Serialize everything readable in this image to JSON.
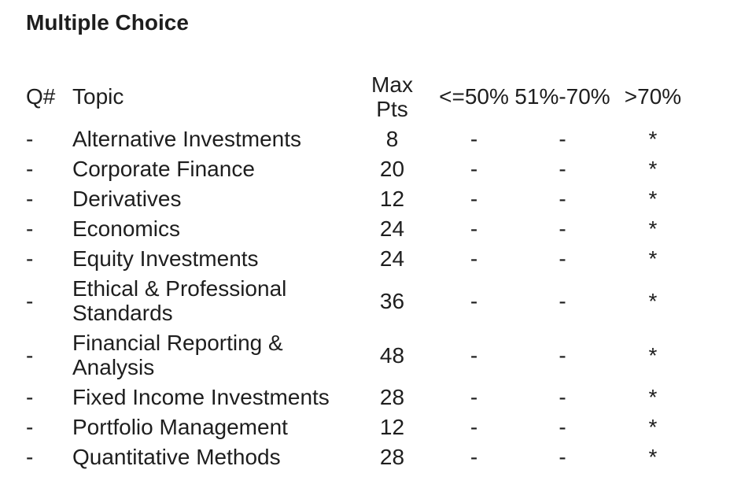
{
  "title": "Multiple Choice",
  "table": {
    "headers": {
      "q": "Q#",
      "topic": "Topic",
      "max_line1": "Max",
      "max_line2": "Pts",
      "le50": "<=50%",
      "range51_70": "51%-70%",
      "gt70": ">70%"
    },
    "rows": [
      {
        "q": "-",
        "topic": "Alternative Investments",
        "max_pts": "8",
        "le50": "-",
        "range51_70": "-",
        "gt70": "*"
      },
      {
        "q": "-",
        "topic": "Corporate Finance",
        "max_pts": "20",
        "le50": "-",
        "range51_70": "-",
        "gt70": "*"
      },
      {
        "q": "-",
        "topic": "Derivatives",
        "max_pts": "12",
        "le50": "-",
        "range51_70": "-",
        "gt70": "*"
      },
      {
        "q": "-",
        "topic": "Economics",
        "max_pts": "24",
        "le50": "-",
        "range51_70": "-",
        "gt70": "*"
      },
      {
        "q": "-",
        "topic": "Equity Investments",
        "max_pts": "24",
        "le50": "-",
        "range51_70": "-",
        "gt70": "*"
      },
      {
        "q": "-",
        "topic": "Ethical & Professional Standards",
        "max_pts": "36",
        "le50": "-",
        "range51_70": "-",
        "gt70": "*"
      },
      {
        "q": "-",
        "topic": "Financial Reporting & Analysis",
        "max_pts": "48",
        "le50": "-",
        "range51_70": "-",
        "gt70": "*"
      },
      {
        "q": "-",
        "topic": "Fixed Income Investments",
        "max_pts": "28",
        "le50": "-",
        "range51_70": "-",
        "gt70": "*"
      },
      {
        "q": "-",
        "topic": "Portfolio Management",
        "max_pts": "12",
        "le50": "-",
        "range51_70": "-",
        "gt70": "*"
      },
      {
        "q": "-",
        "topic": "Quantitative Methods",
        "max_pts": "28",
        "le50": "-",
        "range51_70": "-",
        "gt70": "*"
      }
    ]
  }
}
